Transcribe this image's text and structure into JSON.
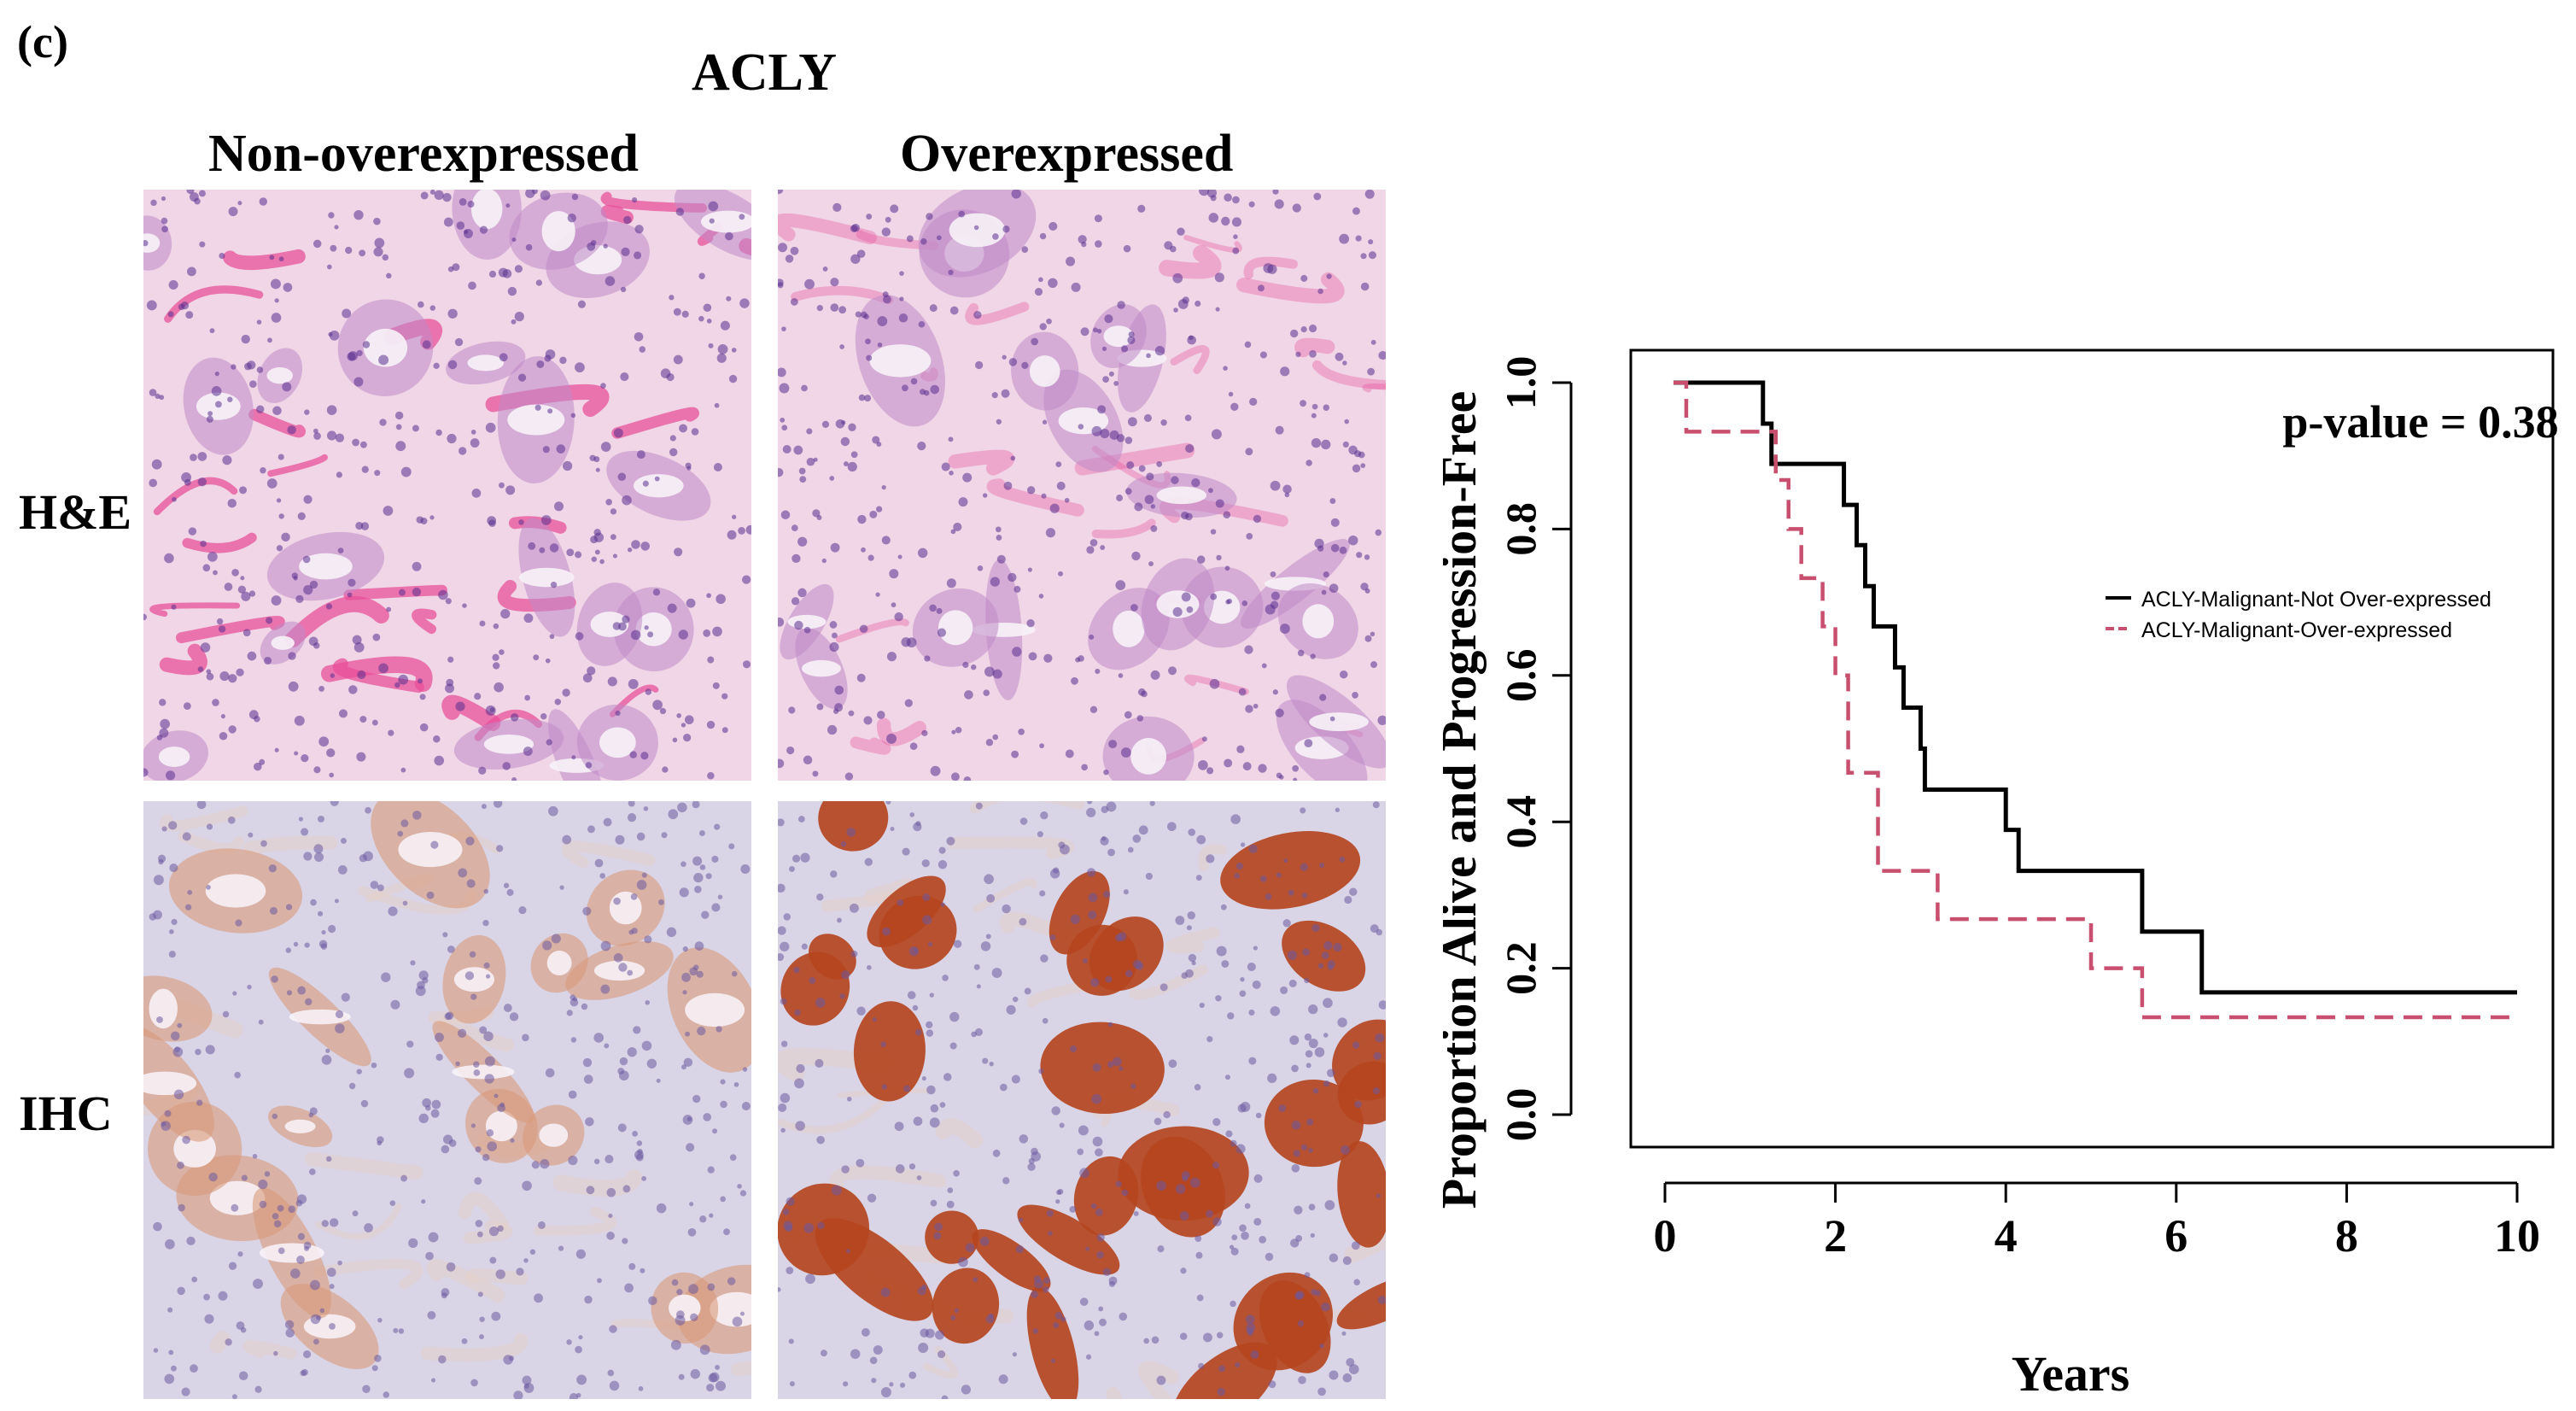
{
  "figure": {
    "panel_label": "(c)",
    "gene_title": "ACLY",
    "columns": [
      "Non-overexpressed",
      "Overexpressed"
    ],
    "rows": [
      "H&E",
      "IHC"
    ],
    "image_colors": {
      "he_background": "#f0d6e6",
      "he_stroma": "#e8509a",
      "he_nuclei": "#5a2f8f",
      "ihc_background": "#d9d4e6",
      "ihc_stain_weak": "#d99a7a",
      "ihc_stain_strong": "#b4451f",
      "ihc_nuclei": "#6b5aa0"
    }
  },
  "chart_data": {
    "type": "line",
    "title": "",
    "xlabel": "Years",
    "ylabel": "Proportion Alive and Progression-Free",
    "xlim": [
      0,
      10
    ],
    "ylim": [
      0,
      1
    ],
    "xticks": [
      0,
      2,
      4,
      6,
      8,
      10
    ],
    "yticks": [
      "0.0",
      "0.2",
      "0.4",
      "0.6",
      "0.8",
      "1.0"
    ],
    "annotation": "p-value = 0.38",
    "legend_position": "right",
    "series": [
      {
        "name": "ACLY-Malignant-Not Over-expressed",
        "color": "#000000",
        "dash": "solid",
        "steps": [
          [
            0.1,
            1.0
          ],
          [
            1.15,
            0.944
          ],
          [
            1.25,
            0.889
          ],
          [
            2.1,
            0.833
          ],
          [
            2.25,
            0.778
          ],
          [
            2.35,
            0.722
          ],
          [
            2.45,
            0.667
          ],
          [
            2.7,
            0.611
          ],
          [
            2.8,
            0.556
          ],
          [
            3.0,
            0.5
          ],
          [
            3.05,
            0.444
          ],
          [
            4.0,
            0.389
          ],
          [
            4.15,
            0.333
          ],
          [
            5.6,
            0.25
          ],
          [
            6.3,
            0.167
          ],
          [
            10.0,
            0.167
          ]
        ]
      },
      {
        "name": "ACLY-Malignant-Over-expressed",
        "color": "#c8506e",
        "dash": "dashed",
        "steps": [
          [
            0.1,
            1.0
          ],
          [
            0.25,
            0.933
          ],
          [
            1.3,
            0.867
          ],
          [
            1.45,
            0.8
          ],
          [
            1.6,
            0.733
          ],
          [
            1.85,
            0.667
          ],
          [
            2.0,
            0.6
          ],
          [
            2.15,
            0.467
          ],
          [
            2.5,
            0.333
          ],
          [
            3.2,
            0.267
          ],
          [
            5.0,
            0.2
          ],
          [
            5.6,
            0.133
          ],
          [
            10.0,
            0.133
          ]
        ]
      }
    ]
  }
}
